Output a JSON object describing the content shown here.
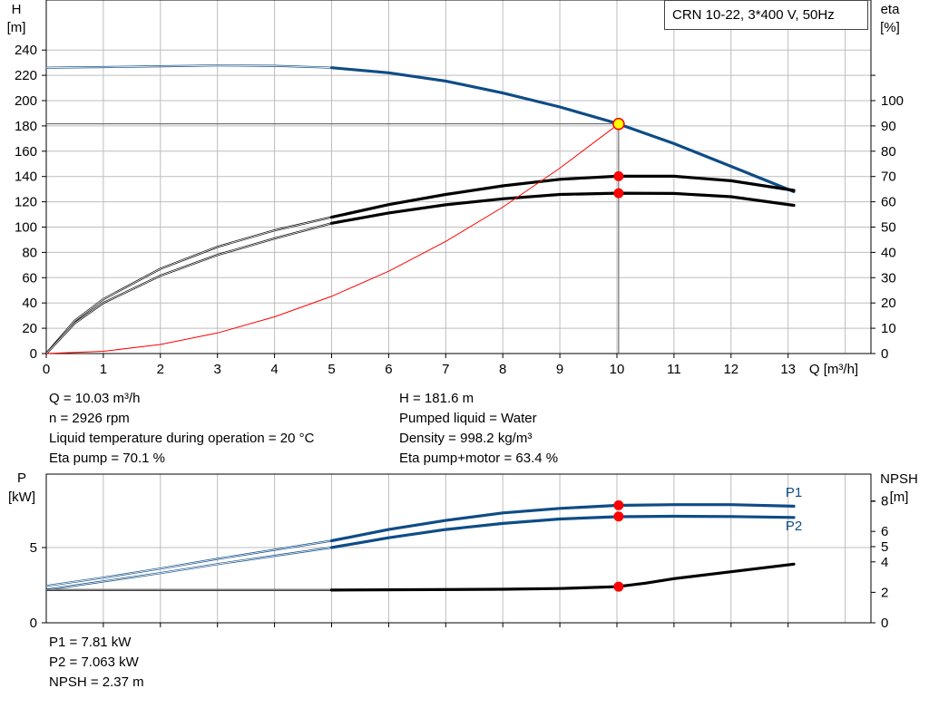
{
  "title": "CRN 10-22, 3*400 V, 50Hz",
  "colors": {
    "head": "#0e4c86",
    "eff": "#000000",
    "npsh": "#000000",
    "system": "#ff0000",
    "grid": "#bdbdbd",
    "marker": "#ff0000",
    "op_marker": "#ffff00"
  },
  "readouts": {
    "q": "Q = 10.03 m³/h",
    "n": "n = 2926 rpm",
    "temp": "Liquid temperature during operation = 20 °C",
    "eta_pump": "Eta pump = 70.1 %",
    "h": "H = 181.6 m",
    "liquid": "Pumped liquid = Water",
    "density": "Density = 998.2 kg/m³",
    "eta_total": "Eta pump+motor = 63.4 %",
    "p1": "P1 = 7.81 kW",
    "p2": "P2 = 7.063 kW",
    "npsh": "NPSH = 2.37 m"
  },
  "chart_data": [
    {
      "type": "line",
      "xlabel": "Q [m³/h]",
      "ylabel": "H [m]",
      "y2label": "eta [%]",
      "xlim": [
        0,
        14
      ],
      "ylim": [
        0,
        250
      ],
      "y2lim": [
        0,
        125
      ],
      "x_ticks": [
        0,
        1,
        2,
        3,
        4,
        5,
        6,
        7,
        8,
        9,
        10,
        11,
        12,
        13
      ],
      "y_ticks": [
        0,
        20,
        40,
        60,
        80,
        100,
        120,
        140,
        160,
        180,
        200,
        220,
        240
      ],
      "y2_ticks": [
        0,
        10,
        20,
        30,
        40,
        50,
        60,
        70,
        80,
        90,
        100
      ],
      "operating_point": {
        "q": 10.03,
        "h": 181.6,
        "eta_pump": 70.1,
        "eta_total": 63.4
      },
      "series": [
        {
          "axis": "left",
          "color": "#0e4c86",
          "extrapolated_until": 5,
          "x": [
            0,
            1,
            2,
            3,
            4,
            5,
            6,
            7,
            8,
            9,
            10,
            11,
            12,
            13.1
          ],
          "y": [
            226,
            226.5,
            227.2,
            227.8,
            227.5,
            226,
            222,
            215.5,
            206,
            195,
            182,
            166,
            148,
            128
          ]
        },
        {
          "axis": "right",
          "color": "#000000",
          "extrapolated_until": 5,
          "x": [
            0,
            0.5,
            1,
            2,
            3,
            4,
            5,
            6,
            7,
            8,
            9,
            10,
            11,
            12,
            13.1
          ],
          "y": [
            0,
            13,
            21.5,
            33.5,
            42.2,
            48.7,
            53.9,
            58.9,
            62.9,
            66.3,
            68.9,
            70.1,
            70.1,
            68.3,
            64.5
          ]
        },
        {
          "axis": "right",
          "color": "#000000",
          "extrapolated_until": 5,
          "x": [
            0,
            0.5,
            1,
            2,
            3,
            4,
            5,
            6,
            7,
            8,
            9,
            10,
            11,
            12,
            13.1
          ],
          "y": [
            0,
            12,
            20,
            30.8,
            39,
            45.5,
            51.5,
            55.6,
            58.8,
            61.2,
            62.9,
            63.4,
            63.3,
            62,
            58.6
          ]
        },
        {
          "axis": "left",
          "color": "#ff0000",
          "extrapolated_until": 0,
          "x": [
            0,
            1,
            2,
            3,
            4,
            5,
            6,
            7,
            8,
            9,
            10.03
          ],
          "y": [
            0,
            1.8,
            7.2,
            16.3,
            29,
            45.2,
            65.1,
            88.7,
            115.8,
            146.6,
            181.6
          ]
        }
      ],
      "markers": [
        {
          "x": 10.03,
          "y": 181.6,
          "axis": "left",
          "style": "operating"
        },
        {
          "x": 10.03,
          "y": 70.1,
          "axis": "right",
          "style": "point"
        },
        {
          "x": 10.03,
          "y": 63.4,
          "axis": "right",
          "style": "point"
        }
      ]
    },
    {
      "type": "line",
      "ylabel": "P [kW]",
      "y2label": "NPSH [m]",
      "xlim": [
        0,
        14
      ],
      "ylim": [
        0,
        10
      ],
      "y2lim": [
        0,
        10
      ],
      "y_ticks": [
        0,
        5
      ],
      "y2_ticks": [
        0,
        2,
        4,
        5,
        6,
        8
      ],
      "series": [
        {
          "name": "P1",
          "axis": "left",
          "color": "#0e4c86",
          "extrapolated_until": 5,
          "x": [
            0,
            1,
            2,
            3,
            4,
            5,
            6,
            7,
            8,
            9,
            10,
            11,
            12,
            13.1
          ],
          "y": [
            2.45,
            3.0,
            3.6,
            4.25,
            4.85,
            5.45,
            6.2,
            6.8,
            7.3,
            7.6,
            7.8,
            7.85,
            7.85,
            7.75
          ]
        },
        {
          "name": "P2",
          "axis": "left",
          "color": "#0e4c86",
          "extrapolated_until": 5,
          "x": [
            0,
            1,
            2,
            3,
            4,
            5,
            6,
            7,
            8,
            9,
            10,
            11,
            12,
            13.1
          ],
          "y": [
            2.2,
            2.75,
            3.3,
            3.9,
            4.45,
            5.0,
            5.65,
            6.2,
            6.6,
            6.9,
            7.05,
            7.08,
            7.06,
            7.0
          ]
        },
        {
          "axis": "right",
          "color": "#000000",
          "extrapolated_until": 5,
          "x": [
            0,
            5,
            8,
            9,
            10,
            10.5,
            11,
            12,
            13.1
          ],
          "y": [
            2.15,
            2.15,
            2.2,
            2.25,
            2.37,
            2.6,
            2.9,
            3.35,
            3.85
          ]
        }
      ],
      "markers": [
        {
          "x": 10.03,
          "y": 7.81,
          "axis": "left",
          "style": "point"
        },
        {
          "x": 10.03,
          "y": 7.063,
          "axis": "left",
          "style": "point"
        },
        {
          "x": 10.03,
          "y": 2.37,
          "axis": "right",
          "style": "point"
        }
      ]
    }
  ]
}
